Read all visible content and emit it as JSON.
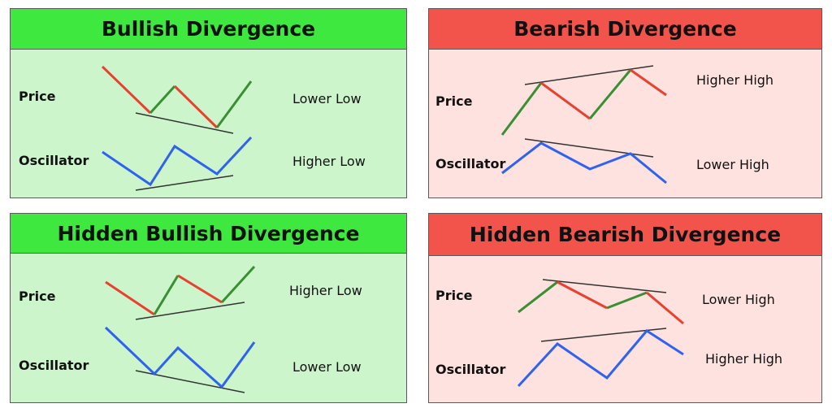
{
  "colors": {
    "bull_header": "#3ee83e",
    "bull_body": "#ccf5cc",
    "bear_header": "#f2544c",
    "bear_body": "#fde2df",
    "up_segment": "#3b8f33",
    "down_segment": "#e8412f",
    "oscillator": "#2f62f0",
    "trendline": "#333333"
  },
  "panels": {
    "bullish": {
      "title": "Bullish Divergence",
      "price_label": "Price",
      "oscillator_label": "Oscillator",
      "price_note": "Lower Low",
      "oscillator_note": "Higher Low"
    },
    "bearish": {
      "title": "Bearish Divergence",
      "price_label": "Price",
      "oscillator_label": "Oscillator",
      "price_note": "Higher High",
      "oscillator_note": "Lower High"
    },
    "hidden_bullish": {
      "title": "Hidden Bullish Divergence",
      "price_label": "Price",
      "oscillator_label": "Oscillator",
      "price_note": "Higher Low",
      "oscillator_note": "Lower Low"
    },
    "hidden_bearish": {
      "title": "Hidden Bearish Divergence",
      "price_label": "Price",
      "oscillator_label": "Oscillator",
      "price_note": "Lower High",
      "oscillator_note": "Higher High"
    }
  }
}
